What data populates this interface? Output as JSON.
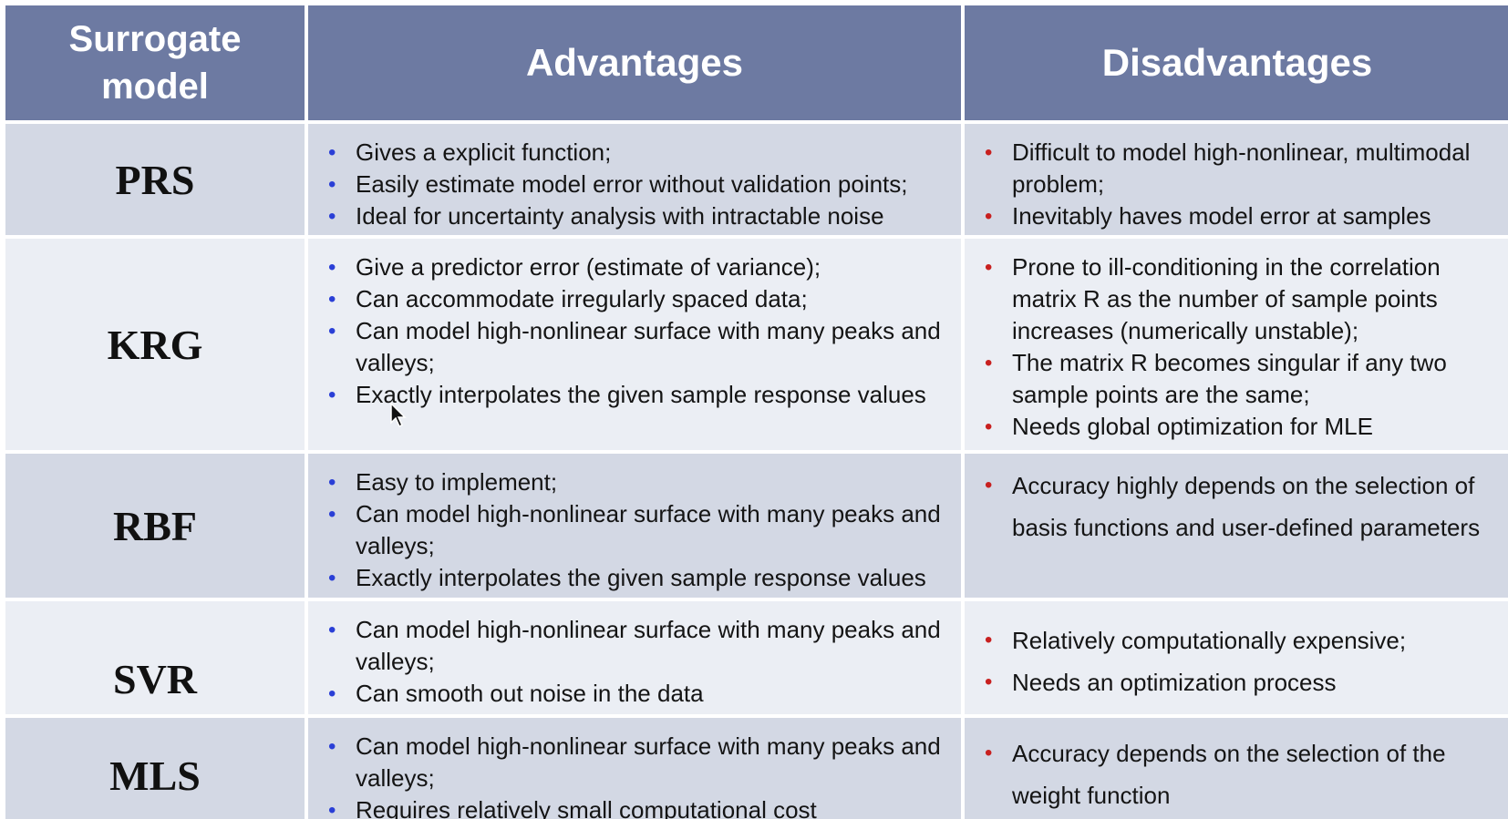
{
  "headers": {
    "model": "Surrogate model",
    "advantages": "Advantages",
    "disadvantages": "Disadvantages"
  },
  "colors": {
    "header_bg": "#6d7aa2",
    "row_dark": "#d3d8e4",
    "row_light": "#ebeef4",
    "advantage_bullet": "#2a3fd6",
    "disadvantage_bullet": "#c8201f"
  },
  "icons": {
    "bullet": "bullet-icon",
    "pointer": "mouse-cursor-icon"
  },
  "rows": [
    {
      "model": "PRS",
      "advantages": [
        "Gives a explicit function;",
        "Easily estimate model error without validation points;",
        "Ideal for uncertainty analysis with intractable noise"
      ],
      "disadvantages": [
        "Difficult to model high-nonlinear, multimodal problem;",
        "Inevitably haves model error at samples"
      ]
    },
    {
      "model": "KRG",
      "advantages": [
        "Give a predictor error (estimate of variance);",
        "Can accommodate irregularly spaced data;",
        "Can model high-nonlinear surface with many peaks and valleys;",
        "Exactly interpolates the given sample response values"
      ],
      "disadvantages": [
        "Prone to ill-conditioning in the correlation matrix R as the number of sample points increases (numerically unstable);",
        "The matrix R becomes singular if any two sample points are the same;",
        "Needs global optimization for MLE"
      ]
    },
    {
      "model": "RBF",
      "advantages": [
        "Easy to implement;",
        "Can model high-nonlinear surface with many peaks and valleys;",
        "Exactly interpolates the given sample response values"
      ],
      "disadvantages": [
        "Accuracy highly depends on the selection of basis functions and user-defined parameters"
      ]
    },
    {
      "model": "SVR",
      "advantages": [
        "Can model high-nonlinear surface with many peaks and valleys;",
        "Can smooth out noise in the data"
      ],
      "disadvantages": [
        "Relatively computationally expensive;",
        "Needs an optimization process"
      ]
    },
    {
      "model": "MLS",
      "advantages": [
        "Can model high-nonlinear surface with many peaks and valleys;",
        "Requires relatively small computational cost"
      ],
      "disadvantages": [
        "Accuracy depends on the selection of the weight function"
      ]
    }
  ]
}
